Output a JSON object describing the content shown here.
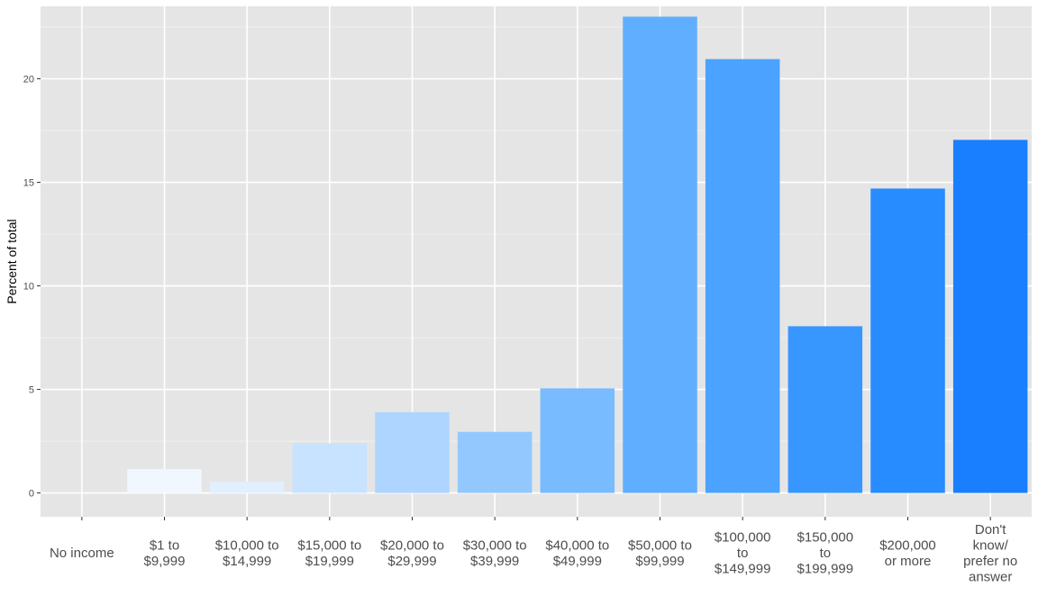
{
  "chart_data": {
    "type": "bar",
    "title": "",
    "xlabel": "",
    "ylabel": "Percent of total",
    "categories": [
      "No income",
      "$1 to\n$9,999",
      "$10,000 to\n$14,999",
      "$15,000 to\n$19,999",
      "$20,000 to\n$29,999",
      "$30,000 to\n$39,999",
      "$40,000 to\n$49,999",
      "$50,000 to\n$99,999",
      "$100,000\nto\n$149,999",
      "$150,000\nto\n$199,999",
      "$200,000\nor more",
      "Don't\nknow/\nprefer no\nanswer"
    ],
    "values": [
      0,
      1.15,
      0.55,
      2.4,
      3.9,
      2.95,
      5.05,
      23.0,
      20.95,
      8.05,
      14.7,
      17.05
    ],
    "colors": [
      "#ffffff",
      "#f0f7ff",
      "#e1efff",
      "#c8e3ff",
      "#aed5ff",
      "#93c8ff",
      "#78bbff",
      "#60aeff",
      "#4ca2ff",
      "#3896ff",
      "#278cff",
      "#1a7fff"
    ],
    "ylim": [
      -1.15,
      23.5
    ],
    "yticks": [
      0,
      5,
      10,
      15,
      20
    ],
    "grid": true,
    "background": "#e5e5e5",
    "legend": "none"
  }
}
